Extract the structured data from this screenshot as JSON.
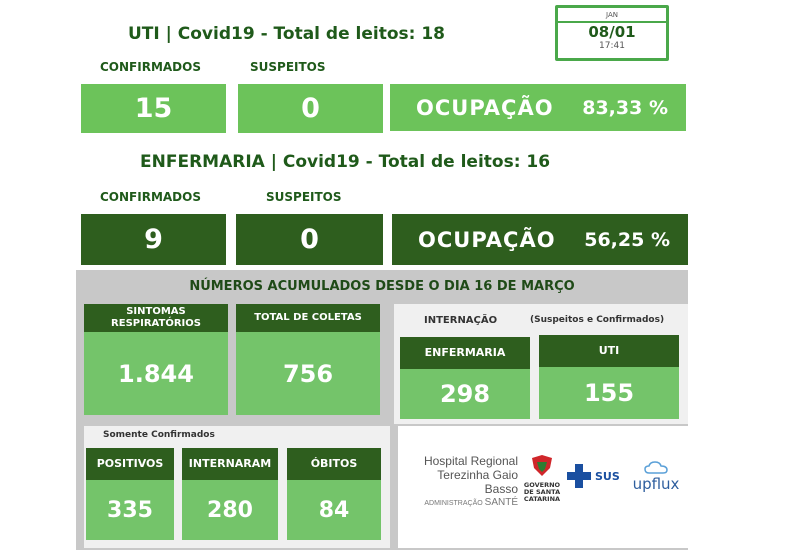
{
  "uti": {
    "title": "UTI | Covid19 - Total de leitos: 18",
    "confirmed_label": "CONFIRMADOS",
    "suspect_label": "SUSPEITOS",
    "confirmed_value": "15",
    "suspect_value": "0",
    "occupancy_label": "OCUPAÇÃO",
    "occupancy_value": "83,33 %"
  },
  "date": {
    "month": "JAN",
    "day": "08/01",
    "time": "17:41"
  },
  "enfermaria": {
    "title": "ENFERMARIA | Covid19 - Total de leitos: 16",
    "confirmed_label": "CONFIRMADOS",
    "suspect_label": "SUSPEITOS",
    "confirmed_value": "9",
    "suspect_value": "0",
    "occupancy_label": "OCUPAÇÃO",
    "occupancy_value": "56,25 %"
  },
  "accumulated": {
    "title": "NÚMEROS ACUMULADOS DESDE O DIA 16 DE MARÇO",
    "sintomas_label": "SINTOMAS RESPIRATÓRIOS",
    "sintomas_value": "1.844",
    "coletas_label": "TOTAL DE COLETAS",
    "coletas_value": "756",
    "internacao_label": "INTERNAÇÃO",
    "internacao_note": "(Suspeitos e Confirmados)",
    "enfermaria_label": "ENFERMARIA",
    "enfermaria_value": "298",
    "uti_label": "UTI",
    "uti_value": "155",
    "confirmed_only_label": "Somente Confirmados",
    "positivos_label": "POSITIVOS",
    "positivos_value": "335",
    "internaram_label": "INTERNARAM",
    "internaram_value": "280",
    "obitos_label": "ÓBITOS",
    "obitos_value": "84"
  },
  "logos": {
    "hospital_line1": "Hospital Regional",
    "hospital_line2": "Terezinha Gaio Basso",
    "hospital_admin": "ADMINISTRAÇÃO",
    "hospital_sante": "SANTÉ",
    "gov_line1": "GOVERNO",
    "gov_line2": "DE SANTA",
    "gov_line3": "CATARINA",
    "sus": "SUS",
    "upflux": "upflux"
  },
  "colors": {
    "light_green": "#6cc35a",
    "dark_green": "#2e5e1e",
    "title_green": "#1f5a1a"
  }
}
